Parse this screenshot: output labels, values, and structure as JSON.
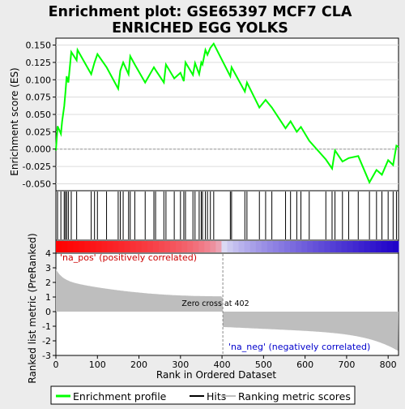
{
  "chart_data": {
    "type": "line",
    "title_line1": "Enrichment plot: GSE65397 MCF7 CLA",
    "title_line2": "ENRICHED EGG YOLKS",
    "xlabel": "Rank in Ordered Dataset",
    "ylabel_top": "Enrichment score (ES)",
    "ylabel_bottom": "Ranked list metric (PreRanked)",
    "xlim": [
      0,
      825
    ],
    "es_ylim": [
      -0.06,
      0.16
    ],
    "es_yticks": [
      "0.150",
      "0.125",
      "0.100",
      "0.075",
      "0.050",
      "0.025",
      "0.000",
      "-0.025",
      "-0.050"
    ],
    "es_ytick_values": [
      0.15,
      0.125,
      0.1,
      0.075,
      0.05,
      0.025,
      0.0,
      -0.025,
      -0.05
    ],
    "rank_ylim": [
      -3,
      4
    ],
    "rank_yticks": [
      "4",
      "3",
      "2",
      "1",
      "0",
      "-1",
      "-2",
      "-3"
    ],
    "rank_ytick_values": [
      4,
      3,
      2,
      1,
      0,
      -1,
      -2,
      -3
    ],
    "xticks": [
      "0",
      "100",
      "200",
      "300",
      "400",
      "500",
      "600",
      "700",
      "800"
    ],
    "xtick_values": [
      0,
      100,
      200,
      300,
      400,
      500,
      600,
      700,
      800
    ],
    "pos_label": "'na_pos' (positively correlated)",
    "neg_label": "'na_neg' (negatively correlated)",
    "zero_cross_label": "Zero cross at 402",
    "zero_cross": 402,
    "series": [
      {
        "name": "Enrichment profile",
        "color": "#00ff00"
      },
      {
        "name": "Hits",
        "color": "#000000"
      },
      {
        "name": "Ranking metric scores",
        "color": "#bebebe"
      }
    ],
    "hits": [
      4,
      12,
      20,
      23,
      26,
      30,
      37,
      50,
      85,
      93,
      100,
      122,
      150,
      155,
      162,
      175,
      179,
      190,
      215,
      236,
      240,
      260,
      265,
      285,
      300,
      308,
      312,
      330,
      335,
      345,
      350,
      353,
      360,
      365,
      372,
      380,
      420,
      423,
      455,
      460,
      490,
      505,
      520,
      553,
      565,
      580,
      590,
      610,
      650,
      665,
      672,
      690,
      705,
      728,
      755,
      772,
      785,
      800,
      812,
      820
    ],
    "es_points": [
      [
        0,
        -0.002
      ],
      [
        4,
        0.033
      ],
      [
        12,
        0.022
      ],
      [
        15,
        0.04
      ],
      [
        20,
        0.062
      ],
      [
        23,
        0.082
      ],
      [
        26,
        0.105
      ],
      [
        30,
        0.096
      ],
      [
        37,
        0.14
      ],
      [
        50,
        0.128
      ],
      [
        52,
        0.143
      ],
      [
        85,
        0.108
      ],
      [
        93,
        0.125
      ],
      [
        100,
        0.137
      ],
      [
        122,
        0.118
      ],
      [
        150,
        0.087
      ],
      [
        155,
        0.113
      ],
      [
        162,
        0.125
      ],
      [
        175,
        0.108
      ],
      [
        179,
        0.134
      ],
      [
        190,
        0.122
      ],
      [
        215,
        0.096
      ],
      [
        236,
        0.118
      ],
      [
        240,
        0.114
      ],
      [
        260,
        0.096
      ],
      [
        265,
        0.122
      ],
      [
        285,
        0.102
      ],
      [
        300,
        0.11
      ],
      [
        308,
        0.098
      ],
      [
        312,
        0.125
      ],
      [
        330,
        0.107
      ],
      [
        335,
        0.124
      ],
      [
        345,
        0.108
      ],
      [
        350,
        0.125
      ],
      [
        353,
        0.122
      ],
      [
        360,
        0.143
      ],
      [
        365,
        0.136
      ],
      [
        372,
        0.146
      ],
      [
        380,
        0.152
      ],
      [
        420,
        0.105
      ],
      [
        423,
        0.118
      ],
      [
        455,
        0.083
      ],
      [
        460,
        0.096
      ],
      [
        490,
        0.06
      ],
      [
        505,
        0.071
      ],
      [
        520,
        0.06
      ],
      [
        553,
        0.03
      ],
      [
        565,
        0.04
      ],
      [
        580,
        0.025
      ],
      [
        590,
        0.032
      ],
      [
        610,
        0.012
      ],
      [
        650,
        -0.015
      ],
      [
        665,
        -0.028
      ],
      [
        672,
        -0.002
      ],
      [
        690,
        -0.018
      ],
      [
        705,
        -0.013
      ],
      [
        728,
        -0.01
      ],
      [
        755,
        -0.048
      ],
      [
        772,
        -0.03
      ],
      [
        785,
        -0.037
      ],
      [
        800,
        -0.016
      ],
      [
        812,
        -0.023
      ],
      [
        820,
        0.005
      ],
      [
        825,
        0.003
      ]
    ]
  }
}
